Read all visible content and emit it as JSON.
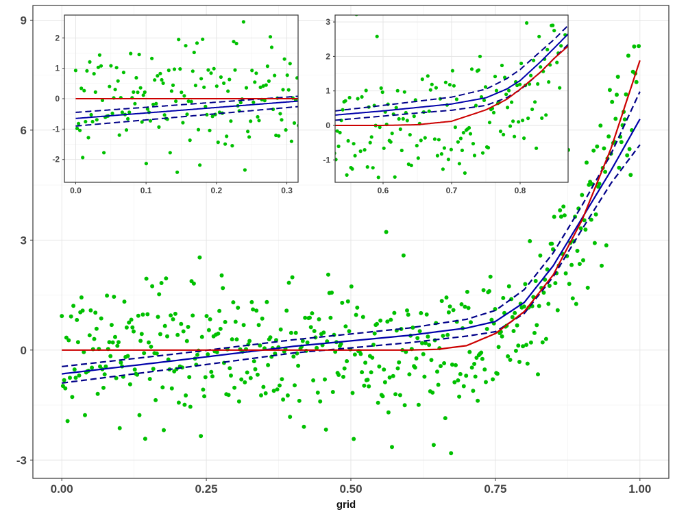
{
  "chart_data": [
    {
      "id": "main",
      "type": "scatter",
      "title": "",
      "xlabel": "grid",
      "ylabel": "",
      "xlim": [
        -0.05,
        1.05
      ],
      "ylim": [
        -3.5,
        9.4
      ],
      "x_ticks": [
        0.0,
        0.25,
        0.5,
        0.75,
        1.0
      ],
      "x_tick_labels": [
        "0.00",
        "0.25",
        "0.50",
        "0.75",
        "1.00"
      ],
      "y_ticks": [
        -3,
        0,
        3,
        6,
        9
      ],
      "y_tick_labels": [
        "-3",
        "0",
        "3",
        "6",
        "9"
      ],
      "grid": true,
      "legend": "none",
      "series": [
        {
          "kind": "points",
          "color": "#00c000",
          "note_points": "about 500 noisy observations around the true curve"
        },
        {
          "kind": "true-curve",
          "color": "#cc0000",
          "x": [
            0.0,
            0.6,
            0.65,
            0.7,
            0.75,
            0.8,
            0.85,
            0.9,
            0.95,
            1.0
          ],
          "y": [
            0.0,
            0.0,
            0.02,
            0.12,
            0.45,
            1.05,
            2.05,
            3.55,
            5.5,
            7.9
          ]
        },
        {
          "kind": "fit",
          "color": "#0000aa",
          "x": [
            0.0,
            0.2,
            0.4,
            0.6,
            0.7,
            0.75,
            0.8,
            0.85,
            0.9,
            0.95,
            1.0
          ],
          "y": [
            -0.65,
            -0.28,
            0.1,
            0.4,
            0.6,
            0.78,
            1.3,
            2.3,
            3.6,
            4.9,
            6.3
          ]
        },
        {
          "kind": "ci-upper",
          "color": "#000088",
          "dashed": true,
          "x": [
            0.0,
            0.2,
            0.4,
            0.6,
            0.7,
            0.75,
            0.8,
            0.85,
            0.9,
            0.95,
            1.0
          ],
          "y": [
            -0.45,
            -0.1,
            0.28,
            0.6,
            0.84,
            1.08,
            1.65,
            2.65,
            3.95,
            5.35,
            7.05
          ]
        },
        {
          "kind": "ci-lower",
          "color": "#000088",
          "dashed": true,
          "x": [
            0.0,
            0.2,
            0.4,
            0.6,
            0.7,
            0.75,
            0.8,
            0.85,
            0.9,
            0.95,
            1.0
          ],
          "y": [
            -0.9,
            -0.5,
            -0.08,
            0.2,
            0.38,
            0.5,
            1.0,
            2.0,
            3.3,
            4.55,
            5.6
          ]
        }
      ]
    },
    {
      "id": "inset-left",
      "type": "scatter",
      "title": "",
      "xlabel": "",
      "ylabel": "",
      "xlim": [
        -0.016,
        0.316
      ],
      "ylim": [
        -2.75,
        2.75
      ],
      "x_ticks": [
        0.0,
        0.1,
        0.2,
        0.3
      ],
      "x_tick_labels": [
        "0.0",
        "0.1",
        "0.2",
        "0.3"
      ],
      "y_ticks": [
        -2,
        -1,
        0,
        1,
        2
      ],
      "y_tick_labels": [
        "-2",
        "-1",
        "0",
        "1",
        "2"
      ],
      "grid": true,
      "legend": "none",
      "series": [
        {
          "kind": "points",
          "color": "#00c000"
        },
        {
          "kind": "true-curve",
          "color": "#cc0000",
          "x": [
            0.0,
            0.316
          ],
          "y": [
            0.0,
            0.0
          ]
        },
        {
          "kind": "fit",
          "color": "#0000aa",
          "x": [
            0.0,
            0.316
          ],
          "y": [
            -0.65,
            -0.08
          ]
        },
        {
          "kind": "ci-upper",
          "color": "#000088",
          "dashed": true,
          "x": [
            0.0,
            0.316
          ],
          "y": [
            -0.45,
            0.08
          ]
        },
        {
          "kind": "ci-lower",
          "color": "#000088",
          "dashed": true,
          "x": [
            0.0,
            0.316
          ],
          "y": [
            -0.9,
            -0.26
          ]
        }
      ]
    },
    {
      "id": "inset-right",
      "type": "scatter",
      "title": "",
      "xlabel": "",
      "ylabel": "",
      "xlim": [
        0.53,
        0.87
      ],
      "ylim": [
        -1.65,
        3.2
      ],
      "x_ticks": [
        0.6,
        0.7,
        0.8
      ],
      "x_tick_labels": [
        "0.6",
        "0.7",
        "0.8"
      ],
      "y_ticks": [
        -1,
        0,
        1,
        2,
        3
      ],
      "y_tick_labels": [
        "-1",
        "0",
        "1",
        "2",
        "3"
      ],
      "grid": true,
      "legend": "none",
      "series": [
        {
          "kind": "points",
          "color": "#00c000"
        },
        {
          "kind": "true-curve",
          "color": "#cc0000",
          "x": [
            0.53,
            0.6,
            0.65,
            0.7,
            0.75,
            0.78,
            0.8,
            0.83,
            0.85,
            0.87
          ],
          "y": [
            0.0,
            0.0,
            0.02,
            0.12,
            0.45,
            0.75,
            1.05,
            1.55,
            1.95,
            2.3
          ]
        },
        {
          "kind": "fit",
          "color": "#0000aa",
          "x": [
            0.53,
            0.6,
            0.65,
            0.7,
            0.75,
            0.78,
            0.8,
            0.83,
            0.85,
            0.87
          ],
          "y": [
            0.3,
            0.42,
            0.52,
            0.62,
            0.8,
            1.05,
            1.3,
            1.85,
            2.25,
            2.65
          ]
        },
        {
          "kind": "ci-upper",
          "color": "#000088",
          "dashed": true,
          "x": [
            0.53,
            0.6,
            0.65,
            0.7,
            0.75,
            0.78,
            0.8,
            0.83,
            0.85,
            0.87
          ],
          "y": [
            0.42,
            0.58,
            0.7,
            0.82,
            1.05,
            1.35,
            1.62,
            2.15,
            2.5,
            2.9
          ]
        },
        {
          "kind": "ci-lower",
          "color": "#000088",
          "dashed": true,
          "x": [
            0.53,
            0.6,
            0.65,
            0.7,
            0.75,
            0.78,
            0.8,
            0.83,
            0.85,
            0.87
          ],
          "y": [
            0.15,
            0.27,
            0.36,
            0.44,
            0.58,
            0.8,
            1.03,
            1.55,
            1.95,
            2.35
          ]
        }
      ]
    }
  ]
}
